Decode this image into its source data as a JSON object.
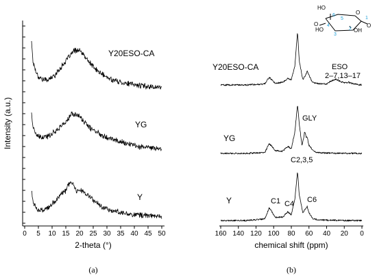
{
  "chart_data": [
    {
      "type": "line",
      "panel": "(a)",
      "xlabel": "2-theta (°)",
      "ylabel": "Intensity (a.u.)",
      "xlim": [
        0,
        50
      ],
      "xticks": [
        "0",
        "5",
        "10",
        "15",
        "20",
        "25",
        "30",
        "35",
        "40",
        "45",
        "50"
      ],
      "y_tick_labels": "none",
      "series": [
        {
          "name": "Y20ESO-CA",
          "x": [
            2.5,
            3,
            4,
            5,
            7,
            9,
            11,
            13,
            15,
            17,
            18,
            19,
            20,
            21,
            22,
            24,
            26,
            28,
            30,
            34,
            38,
            42,
            46,
            50
          ],
          "y": [
            9.8,
            7.2,
            6.0,
            5.2,
            4.8,
            4.9,
            5.4,
            6.3,
            7.2,
            8.1,
            8.5,
            8.6,
            8.5,
            8.2,
            7.7,
            6.9,
            6.1,
            5.6,
            5.1,
            4.6,
            4.3,
            4.1,
            3.95,
            3.85
          ]
        },
        {
          "name": "YG",
          "x": [
            2.5,
            3,
            4,
            5,
            7,
            9,
            11,
            13,
            15,
            16,
            17,
            18,
            19,
            20,
            21,
            22,
            24,
            26,
            28,
            30,
            34,
            38,
            42,
            46,
            50
          ],
          "y": [
            8.4,
            6.6,
            5.7,
            5.3,
            5.2,
            5.5,
            6.0,
            6.6,
            7.2,
            7.6,
            8.2,
            8.1,
            8.2,
            7.9,
            7.5,
            7.1,
            6.4,
            6.0,
            5.6,
            5.3,
            4.8,
            4.4,
            4.1,
            3.9,
            3.8
          ]
        },
        {
          "name": "Y",
          "x": [
            2.5,
            3,
            4,
            5,
            7,
            9,
            11,
            13,
            15,
            16,
            17,
            18,
            19,
            20,
            22,
            24,
            26,
            28,
            30,
            34,
            38,
            42,
            46,
            50
          ],
          "y": [
            7.2,
            5.7,
            5.0,
            4.6,
            4.6,
            5.0,
            5.7,
            6.6,
            7.1,
            7.8,
            8.2,
            7.6,
            7.1,
            7.3,
            6.8,
            6.2,
            5.6,
            5.1,
            4.8,
            4.4,
            4.15,
            4.0,
            3.9,
            3.8
          ]
        }
      ]
    },
    {
      "type": "line",
      "panel": "(b)",
      "xlabel": "chemical shift (ppm)",
      "xlim": [
        160,
        0
      ],
      "x_reversed": true,
      "xticks": [
        "160",
        "140",
        "120",
        "100",
        "80",
        "60",
        "40",
        "20",
        "0"
      ],
      "y_tick_labels": "none",
      "series": [
        {
          "name": "Y20ESO-CA",
          "x": [
            160,
            130,
            110,
            105,
            102,
            98,
            90,
            84,
            80,
            76,
            73,
            71,
            67,
            64,
            62,
            60,
            56,
            48,
            40,
            34,
            30,
            25,
            20,
            15,
            10,
            0
          ],
          "y": [
            0,
            0,
            0.2,
            1.4,
            0.9,
            0.3,
            0.5,
            1.2,
            1.0,
            3.5,
            10,
            4.5,
            1.0,
            1.8,
            2.6,
            1.8,
            0.5,
            0.2,
            0.2,
            0.8,
            1.1,
            0.7,
            0.4,
            0.5,
            0.2,
            0
          ]
        },
        {
          "name": "YG",
          "x": [
            160,
            130,
            110,
            105,
            102,
            98,
            90,
            84,
            80,
            76,
            73,
            71,
            68,
            66,
            65,
            63,
            62,
            60,
            55,
            50,
            40,
            20,
            0
          ],
          "y": [
            0,
            0,
            0.2,
            1.8,
            1.3,
            0.5,
            0.4,
            1.3,
            0.9,
            4,
            9.2,
            5.5,
            1.6,
            2.8,
            4.2,
            3.0,
            3.0,
            1.5,
            0.4,
            0.15,
            0.05,
            0,
            0
          ]
        },
        {
          "name": "Y",
          "x": [
            160,
            130,
            110,
            105,
            102,
            98,
            90,
            84,
            80,
            76,
            73,
            71,
            67,
            64,
            62,
            60,
            56,
            50,
            40,
            20,
            0
          ],
          "y": [
            0,
            0,
            0.3,
            2.4,
            1.6,
            0.6,
            0.6,
            1.6,
            1.1,
            4,
            9.2,
            4.8,
            1.4,
            2.2,
            2.6,
            1.5,
            0.4,
            0.15,
            0.05,
            0,
            0
          ]
        }
      ],
      "annotations": [
        "ESO",
        "2–7,13–17",
        "GLY",
        "C2,3,5",
        "C1",
        "C4",
        "C6"
      ],
      "structure_labels": [
        "1",
        "2",
        "3",
        "4",
        "5",
        "6",
        "HO",
        "OH",
        "O",
        "O",
        "O"
      ]
    }
  ],
  "captions": [
    "(a)",
    "(b)"
  ]
}
